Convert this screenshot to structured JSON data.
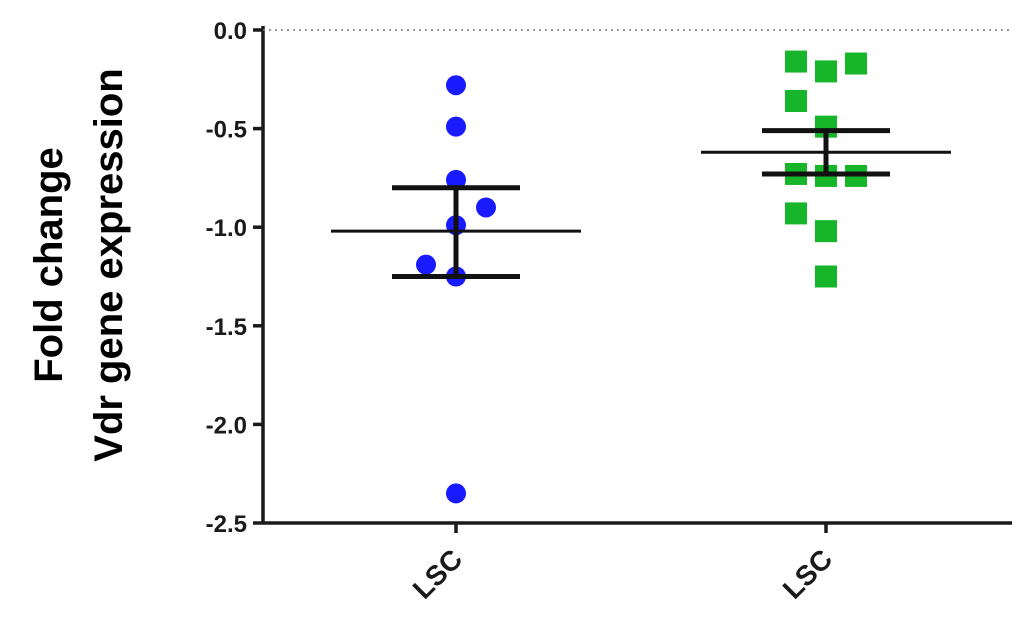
{
  "chart_data": {
    "type": "scatter",
    "title": "",
    "ylabel_lines": [
      "Fold change",
      "Vdr gene expression"
    ],
    "xlabel": "",
    "ylim": [
      -2.5,
      0.0
    ],
    "yticks": [
      "0.0",
      "-0.5",
      "-1.0",
      "-1.5",
      "-2.0",
      "-2.5"
    ],
    "ytick_values": [
      0.0,
      -0.5,
      -1.0,
      -1.5,
      -2.0,
      -2.5
    ],
    "reference_line": 0.0,
    "categories": [
      "LSC",
      "LSC"
    ],
    "groups": [
      {
        "category": "LSC",
        "marker": "circle",
        "color": "#1a1aff",
        "points": [
          {
            "x": 0,
            "y": -0.28
          },
          {
            "x": 0,
            "y": -0.49
          },
          {
            "x": 0,
            "y": -0.76
          },
          {
            "x": 0,
            "y": -0.99
          },
          {
            "x": 0.15,
            "y": -0.9
          },
          {
            "x": -0.15,
            "y": -1.19
          },
          {
            "x": 0,
            "y": -1.25
          },
          {
            "x": 0,
            "y": -2.35
          }
        ],
        "mean": -1.02,
        "error_upper": -0.8,
        "error_lower": -1.25
      },
      {
        "category": "LSC",
        "marker": "square",
        "color": "#17b52a",
        "points": [
          {
            "x": -0.15,
            "y": -0.16
          },
          {
            "x": 0,
            "y": -0.21
          },
          {
            "x": 0.15,
            "y": -0.17
          },
          {
            "x": -0.15,
            "y": -0.36
          },
          {
            "x": 0,
            "y": -0.49
          },
          {
            "x": -0.15,
            "y": -0.73
          },
          {
            "x": 0,
            "y": -0.74
          },
          {
            "x": 0.15,
            "y": -0.74
          },
          {
            "x": -0.15,
            "y": -0.93
          },
          {
            "x": 0,
            "y": -1.02
          },
          {
            "x": 0,
            "y": -1.25
          }
        ],
        "mean": -0.62,
        "error_upper": -0.51,
        "error_lower": -0.73
      }
    ]
  }
}
